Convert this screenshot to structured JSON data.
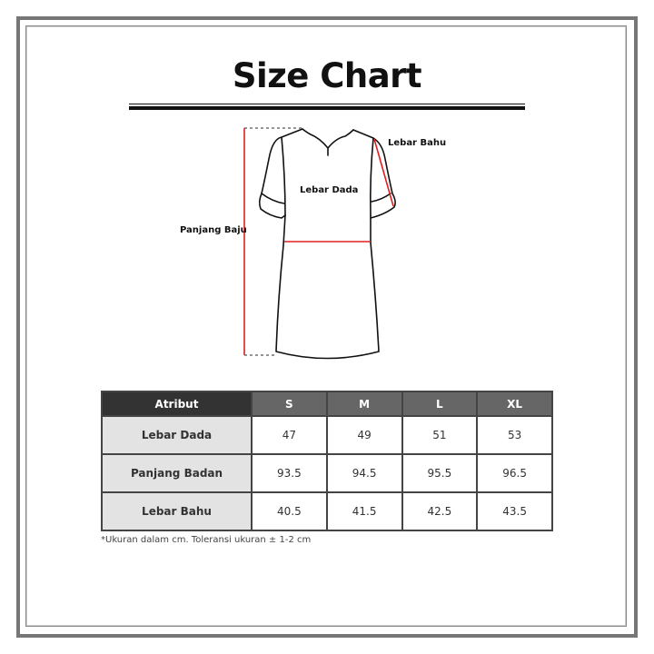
{
  "title": "Size Chart",
  "diagram": {
    "labels": {
      "shoulder": "Lebar Bahu",
      "chest": "Lebar Dada",
      "length": "Panjang Baju"
    },
    "measure_color": "#e02020"
  },
  "table": {
    "headers": [
      "Atribut",
      "S",
      "M",
      "L",
      "XL"
    ],
    "rows": [
      {
        "label": "Lebar Dada",
        "values": [
          "47",
          "49",
          "51",
          "53"
        ]
      },
      {
        "label": "Panjang Badan",
        "values": [
          "93.5",
          "94.5",
          "95.5",
          "96.5"
        ]
      },
      {
        "label": "Lebar Bahu",
        "values": [
          "40.5",
          "41.5",
          "42.5",
          "43.5"
        ]
      }
    ]
  },
  "note": "*Ukuran dalam cm. Toleransi ukuran ± 1-2 cm"
}
